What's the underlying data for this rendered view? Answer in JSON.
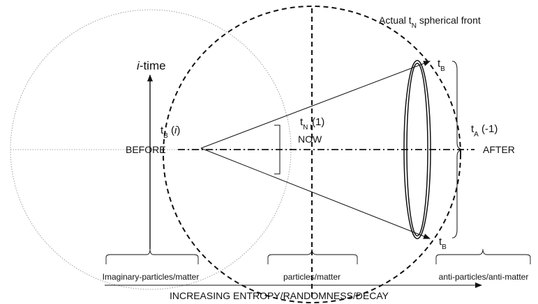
{
  "labels": {
    "front": {
      "pre": "Actual t",
      "sub": "N",
      "post": " spherical front"
    },
    "i_time": {
      "italic": "i",
      "post": "-time"
    },
    "tb_i": {
      "pre": "t",
      "sub": "B",
      "mid": " (",
      "italic": "i",
      "post": ")"
    },
    "before": "BEFORE",
    "tn": {
      "pre": "t",
      "sub": "N I",
      "post": "(1)"
    },
    "now": "NOW",
    "ta": {
      "pre": "t",
      "sub": "A",
      "post": " (-1)"
    },
    "after": "AFTER",
    "tb_top": {
      "pre": "t",
      "sub": "B"
    },
    "tb_bottom": {
      "pre": "t",
      "sub": "B"
    },
    "imaginary": "Imaginary-particles/matter",
    "particles": "particles/matter",
    "anti": "anti-particles/anti-matter",
    "entropy": "INCREASING ENTROPY/RANDOMNESS/DECAY"
  }
}
